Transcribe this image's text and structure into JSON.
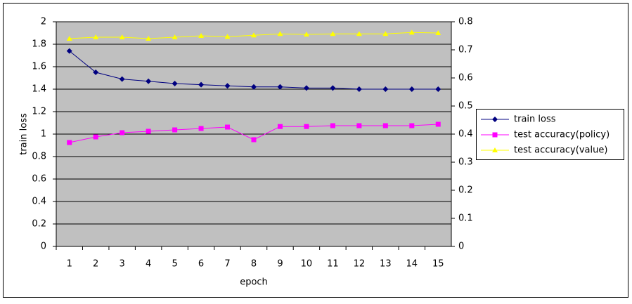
{
  "chart_data": {
    "type": "line",
    "x_label": "epoch",
    "y_label": "train loss",
    "categories": [
      "1",
      "2",
      "3",
      "4",
      "5",
      "6",
      "7",
      "8",
      "9",
      "10",
      "11",
      "12",
      "13",
      "14",
      "15"
    ],
    "series": [
      {
        "name": "train loss",
        "color": "#000080",
        "marker": "diamond",
        "values": [
          1.74,
          1.55,
          1.49,
          1.47,
          1.45,
          1.44,
          1.43,
          1.42,
          1.42,
          1.41,
          1.41,
          1.4,
          1.4,
          1.4,
          1.4
        ]
      },
      {
        "name": "test accuracy(policy)",
        "color": "#ff00ff",
        "marker": "square",
        "axis": "y2",
        "values": [
          0.37,
          0.39,
          0.405,
          0.41,
          0.415,
          0.42,
          0.425,
          0.38,
          0.427,
          0.427,
          0.43,
          0.43,
          0.43,
          0.43,
          0.435
        ]
      },
      {
        "name": "test accuracy(value)",
        "color": "#ffff00",
        "marker": "triangle",
        "axis": "y2",
        "values": [
          0.74,
          0.745,
          0.745,
          0.74,
          0.745,
          0.75,
          0.747,
          0.752,
          0.757,
          0.755,
          0.757,
          0.757,
          0.757,
          0.762,
          0.76
        ]
      }
    ],
    "ylim": [
      0,
      2
    ],
    "yticks": [
      0,
      0.2,
      0.4,
      0.6,
      0.8,
      1,
      1.2,
      1.4,
      1.6,
      1.8,
      2
    ],
    "y2lim": [
      0,
      0.8
    ],
    "y2ticks": [
      0,
      0.1,
      0.2,
      0.3,
      0.4,
      0.5,
      0.6,
      0.7,
      0.8
    ],
    "grid": true,
    "legend": "right",
    "plot_background": "#c0c0c0"
  }
}
